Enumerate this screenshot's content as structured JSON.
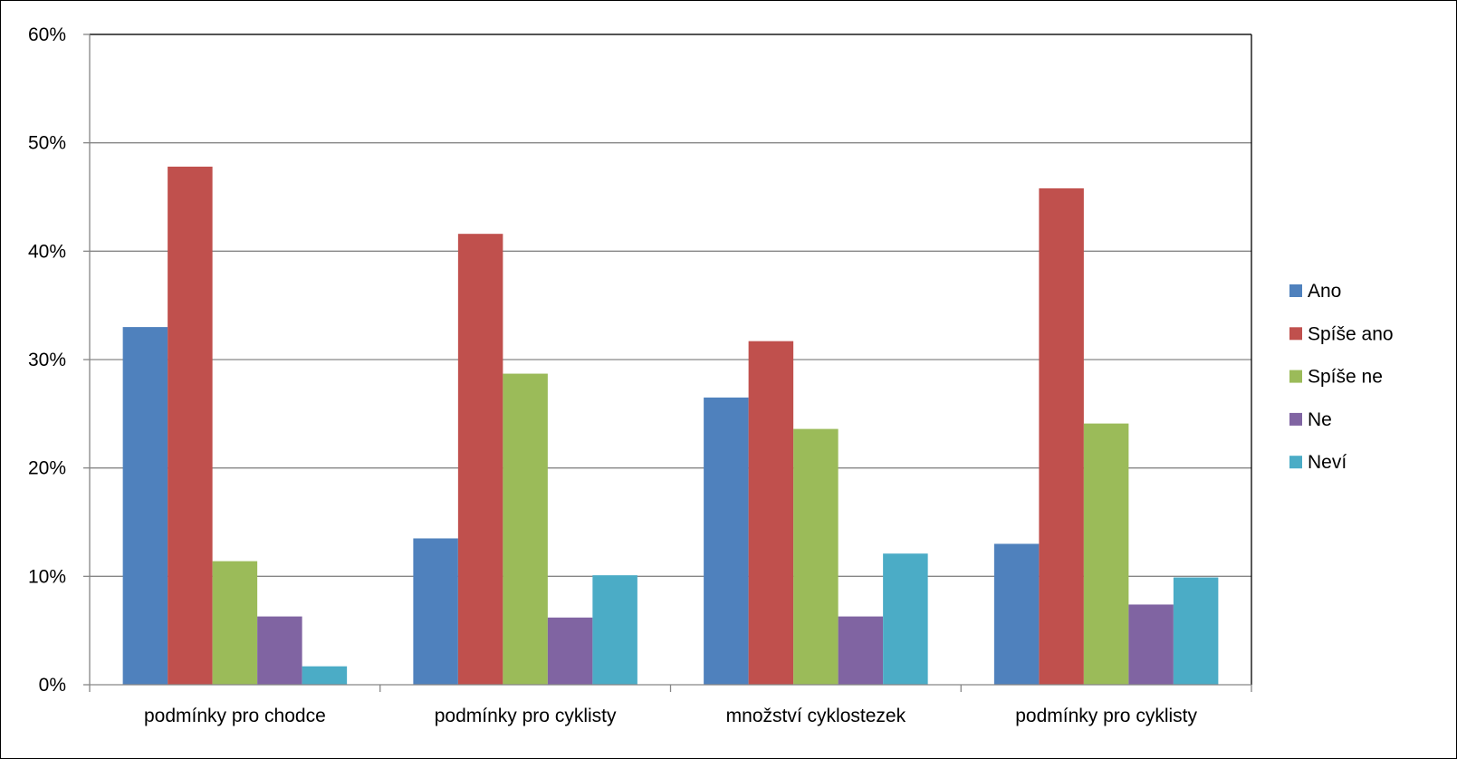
{
  "chart_data": {
    "type": "bar",
    "title": "",
    "xlabel": "",
    "ylabel": "",
    "categories": [
      "podmínky pro chodce",
      "podmínky pro cyklisty",
      "množství cyklostezek",
      "podmínky pro cyklisty"
    ],
    "series": [
      {
        "name": "Ano",
        "color": "#4F81BD",
        "values": [
          33.0,
          13.5,
          26.5,
          13.0
        ]
      },
      {
        "name": "Spíše ano",
        "color": "#C0504D",
        "values": [
          47.8,
          41.6,
          31.7,
          45.8
        ]
      },
      {
        "name": "Spíše ne",
        "color": "#9BBB59",
        "values": [
          11.4,
          28.7,
          23.6,
          24.1
        ]
      },
      {
        "name": "Ne",
        "color": "#8064A2",
        "values": [
          6.3,
          6.2,
          6.3,
          7.4
        ]
      },
      {
        "name": "Neví",
        "color": "#4BACC6",
        "values": [
          1.7,
          10.1,
          12.1,
          9.9
        ]
      }
    ],
    "yticks": [
      0,
      10,
      20,
      30,
      40,
      50,
      60
    ],
    "ytick_labels": [
      "0%",
      "10%",
      "20%",
      "30%",
      "40%",
      "50%",
      "60%"
    ],
    "ylim": [
      0,
      60
    ],
    "grid": true,
    "legend_position": "right",
    "gridline_color": "#868686",
    "axis_color": "#868686"
  }
}
